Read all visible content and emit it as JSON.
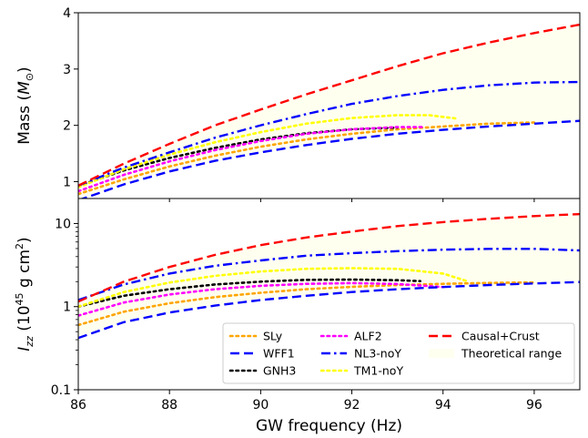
{
  "chart_data": {
    "type": "line",
    "xlabel": "GW frequency (Hz)",
    "xlim": [
      86,
      97
    ],
    "xticks": [
      "86",
      "88",
      "90",
      "92",
      "94",
      "96"
    ],
    "x": [
      86,
      87,
      88,
      89,
      90,
      91,
      92,
      93,
      94,
      95,
      96,
      97
    ],
    "legend_position": "lower-right (bottom panel)",
    "series_style": [
      {
        "name": "SLy",
        "color": "#ffa500",
        "dash": "dot"
      },
      {
        "name": "WFF1",
        "color": "#0000ff",
        "dash": "dashed"
      },
      {
        "name": "GNH3",
        "color": "#000000",
        "dash": "dot"
      },
      {
        "name": "ALF2",
        "color": "#ff00ff",
        "dash": "dot"
      },
      {
        "name": "NL3-noY",
        "color": "#0000ff",
        "dash": "dashdot"
      },
      {
        "name": "TM1-noY",
        "color": "#ffff00",
        "dash": "dot"
      },
      {
        "name": "Causal+Crust",
        "color": "#ff0000",
        "dash": "dashed"
      }
    ],
    "band": {
      "name": "Theoretical range",
      "color": "#fffff0"
    },
    "panels": [
      {
        "id": "mass",
        "ylabel": "Mass",
        "ylabel_unit": "M",
        "ylabel_subscript": "⊙",
        "ylim": [
          0.7,
          4.0
        ],
        "yscale": "linear",
        "yticks": [
          {
            "value": 1,
            "label": "1"
          },
          {
            "value": 2,
            "label": "2"
          },
          {
            "value": 3,
            "label": "3"
          },
          {
            "value": 4,
            "label": "4"
          }
        ],
        "series": [
          {
            "name": "Causal+Crust",
            "x": [
              86,
              87,
              88,
              89,
              90,
              91,
              92,
              93,
              94,
              95,
              96,
              97
            ],
            "y": [
              0.93,
              1.32,
              1.67,
              2.0,
              2.28,
              2.55,
              2.8,
              3.05,
              3.28,
              3.47,
              3.64,
              3.79
            ]
          },
          {
            "name": "NL3-noY",
            "x": [
              86,
              87,
              88,
              89,
              90,
              91,
              92,
              93,
              94,
              95,
              96,
              97
            ],
            "y": [
              0.93,
              1.25,
              1.52,
              1.78,
              2.0,
              2.2,
              2.38,
              2.52,
              2.63,
              2.71,
              2.76,
              2.77
            ]
          },
          {
            "name": "WFF1",
            "x": [
              86,
              87,
              88,
              89,
              90,
              91,
              92,
              93,
              94,
              95,
              96,
              97
            ],
            "y": [
              0.67,
              0.95,
              1.18,
              1.37,
              1.52,
              1.65,
              1.76,
              1.85,
              1.92,
              1.98,
              2.03,
              2.08
            ]
          },
          {
            "name": "SLy",
            "x": [
              86,
              87,
              88,
              89,
              90,
              91,
              92,
              93,
              94,
              95,
              96
            ],
            "y": [
              0.78,
              1.04,
              1.27,
              1.46,
              1.62,
              1.75,
              1.85,
              1.93,
              1.98,
              2.03,
              2.05
            ]
          },
          {
            "name": "GNH3",
            "x": [
              86,
              87,
              88,
              89,
              90,
              91,
              92,
              93
            ],
            "y": [
              0.92,
              1.2,
              1.42,
              1.6,
              1.75,
              1.86,
              1.93,
              1.96
            ]
          },
          {
            "name": "ALF2",
            "x": [
              86,
              87,
              88,
              89,
              90,
              91,
              92,
              93,
              93.6
            ],
            "y": [
              0.83,
              1.12,
              1.36,
              1.56,
              1.72,
              1.85,
              1.93,
              1.97,
              1.97
            ]
          },
          {
            "name": "TM1-noY",
            "x": [
              86,
              87,
              88,
              89,
              90,
              91,
              92,
              93,
              93.7,
              94.3
            ],
            "y": [
              0.9,
              1.22,
              1.48,
              1.7,
              1.88,
              2.03,
              2.13,
              2.18,
              2.18,
              2.12
            ]
          }
        ]
      },
      {
        "id": "inertia",
        "ylabel": "I",
        "ylabel_subscript": "zz",
        "ylabel_unit": "(10",
        "ylabel_unit_sup": "45",
        "ylabel_unit_rest": " g cm",
        "ylabel_unit_sup2": "2",
        "ylabel_unit_end": ")",
        "ylim": [
          0.1,
          20
        ],
        "yscale": "log",
        "yticks": [
          {
            "value": 0.1,
            "label": "0.1"
          },
          {
            "value": 1,
            "label": "1"
          },
          {
            "value": 10,
            "label": "10"
          }
        ],
        "series": [
          {
            "name": "Causal+Crust",
            "x": [
              86,
              87,
              88,
              89,
              90,
              91,
              92,
              93,
              94,
              95,
              96,
              97
            ],
            "y": [
              1.15,
              2.0,
              3.0,
              4.2,
              5.5,
              6.8,
              8.0,
              9.3,
              10.4,
              11.4,
              12.3,
              13.0
            ]
          },
          {
            "name": "NL3-noY",
            "x": [
              86,
              87,
              88,
              89,
              90,
              91,
              92,
              93,
              94,
              95,
              96,
              97
            ],
            "y": [
              1.2,
              1.85,
              2.5,
              3.1,
              3.6,
              4.1,
              4.4,
              4.65,
              4.85,
              4.95,
              4.95,
              4.75
            ]
          },
          {
            "name": "WFF1",
            "x": [
              86,
              87,
              88,
              89,
              90,
              91,
              92,
              93,
              94,
              95,
              96,
              97
            ],
            "y": [
              0.42,
              0.65,
              0.85,
              1.03,
              1.2,
              1.35,
              1.5,
              1.62,
              1.72,
              1.82,
              1.9,
              1.98
            ]
          },
          {
            "name": "SLy",
            "x": [
              86,
              87,
              88,
              89,
              90,
              91,
              92,
              93,
              94,
              95,
              96
            ],
            "y": [
              0.6,
              0.87,
              1.1,
              1.3,
              1.47,
              1.62,
              1.73,
              1.82,
              1.88,
              1.93,
              1.96
            ]
          },
          {
            "name": "GNH3",
            "x": [
              86,
              87,
              88,
              89,
              90,
              91,
              92,
              93,
              93.5
            ],
            "y": [
              1.0,
              1.35,
              1.62,
              1.85,
              2.0,
              2.1,
              2.12,
              2.08,
              2.03
            ]
          },
          {
            "name": "ALF2",
            "x": [
              86,
              87,
              88,
              89,
              90,
              91,
              92,
              93,
              94
            ],
            "y": [
              0.78,
              1.12,
              1.4,
              1.62,
              1.78,
              1.88,
              1.92,
              1.87,
              1.72
            ]
          },
          {
            "name": "TM1-noY",
            "x": [
              86,
              87,
              88,
              89,
              90,
              91,
              92,
              93,
              94,
              94.5
            ],
            "y": [
              1.0,
              1.5,
              1.95,
              2.35,
              2.65,
              2.85,
              2.9,
              2.85,
              2.5,
              2.05
            ]
          }
        ]
      }
    ]
  }
}
